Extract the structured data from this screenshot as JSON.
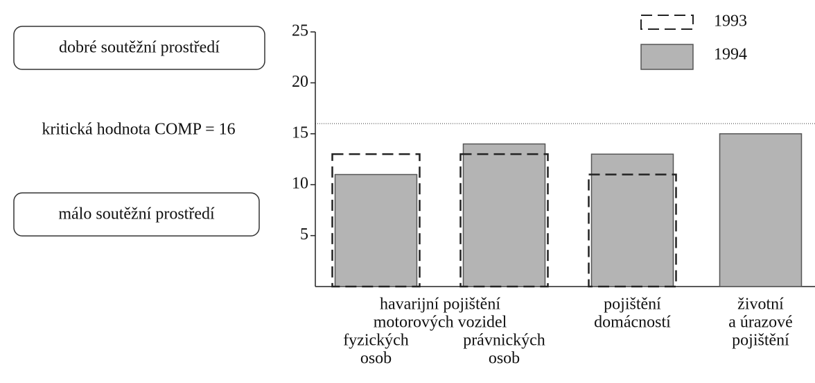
{
  "chart_data": {
    "type": "bar",
    "group_label": [
      "havarijní pojištění",
      "motorových vozidel"
    ],
    "categories": [
      [
        "fyzických",
        "osob"
      ],
      [
        "právnických",
        "osob"
      ],
      [
        "pojištění",
        "domácností"
      ],
      [
        "životní",
        "a úrazové",
        "pojištění"
      ]
    ],
    "series": [
      {
        "name": "1993",
        "color": "#222222",
        "values": [
          13,
          13,
          11,
          null
        ]
      },
      {
        "name": "1994",
        "color": "#b4b4b4",
        "values": [
          11,
          14,
          13,
          15
        ]
      }
    ],
    "ylim": [
      0,
      25
    ],
    "yticks": [
      5,
      10,
      15,
      20,
      25
    ],
    "threshold": {
      "value": 16,
      "label": "kritická hodnota COMP = 16"
    },
    "annotations": [
      "dobré soutěžní prostředí",
      "málo soutěžní prostředí"
    ],
    "legend": "top-right"
  }
}
